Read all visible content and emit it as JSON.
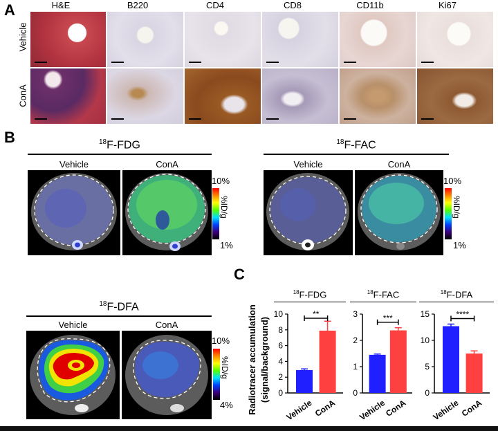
{
  "panels": {
    "a": "A",
    "b": "B",
    "c": "C"
  },
  "histology": {
    "columns": [
      "H&E",
      "B220",
      "CD4",
      "CD8",
      "CD11b",
      "Ki67"
    ],
    "rows": [
      "Vehicle",
      "ConA"
    ]
  },
  "pet": {
    "fdg": {
      "title_sup": "18",
      "title_main": "F-FDG",
      "left": "Vehicle",
      "right": "ConA",
      "cbar_top": "10%",
      "cbar_mid": "%ID/g",
      "cbar_bottom": "1%"
    },
    "fac": {
      "title_sup": "18",
      "title_main": "F-FAC",
      "left": "Vehicle",
      "right": "ConA",
      "cbar_top": "10%",
      "cbar_mid": "%ID/g",
      "cbar_bottom": "1%"
    },
    "dfa": {
      "title_sup": "18",
      "title_main": "F-DFA",
      "left": "Vehicle",
      "right": "ConA",
      "cbar_top": "10%",
      "cbar_mid": "%ID/g",
      "cbar_bottom": "4%"
    }
  },
  "colors": {
    "vehicle": "#1f1fff",
    "cona": "#ff4040"
  },
  "ylabel_line1": "Radiotracer accumulation",
  "ylabel_line2": "(signal/background)",
  "chart_data": [
    {
      "type": "bar",
      "title_sup": "18",
      "title_main": "F-FDG",
      "categories": [
        "Vehicle",
        "ConA"
      ],
      "values": [
        2.9,
        7.9
      ],
      "errors": [
        0.15,
        1.2
      ],
      "ylim": [
        0,
        10
      ],
      "yticks": [
        "0",
        "2",
        "4",
        "6",
        "8",
        "10"
      ],
      "significance": "**"
    },
    {
      "type": "bar",
      "title_sup": "18",
      "title_main": "F-FAC",
      "categories": [
        "Vehicle",
        "ConA"
      ],
      "values": [
        1.45,
        2.38
      ],
      "errors": [
        0.03,
        0.1
      ],
      "ylim": [
        0,
        3
      ],
      "yticks": [
        "0",
        "1",
        "2",
        "3"
      ],
      "significance": "***"
    },
    {
      "type": "bar",
      "title_sup": "18",
      "title_main": "F-DFA",
      "categories": [
        "Vehicle",
        "ConA"
      ],
      "values": [
        12.7,
        7.5
      ],
      "errors": [
        0.4,
        0.5
      ],
      "ylim": [
        0,
        15
      ],
      "yticks": [
        "0",
        "5",
        "10",
        "15"
      ],
      "significance": "****"
    }
  ]
}
